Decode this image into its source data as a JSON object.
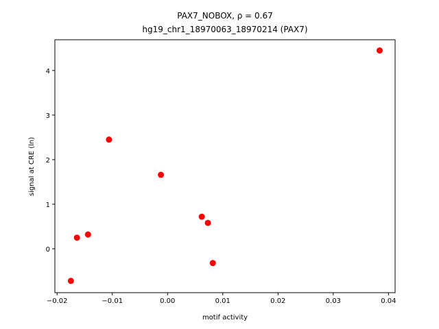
{
  "chart_data": {
    "type": "scatter",
    "title": "PAX7_NOBOX, ρ = 0.67",
    "subtitle": "hg19_chr1_18970063_18970214 (PAX7)",
    "x_label": "motif activity",
    "y_label": "signal at CRE (ln)",
    "series": [
      {
        "color": "#ff0000",
        "x": [
          0.0384,
          -0.0106,
          -0.0012,
          0.0062,
          0.0073,
          -0.0144,
          -0.0164,
          0.0082,
          -0.0175
        ],
        "values": [
          4.45,
          2.45,
          1.66,
          0.72,
          0.58,
          0.32,
          0.25,
          -0.32,
          -0.72
        ]
      }
    ],
    "xlim": [
      -0.0204,
      0.0412
    ],
    "ylim": [
      -0.985,
      4.69
    ],
    "xticks": [
      {
        "value": -0.02,
        "label": "−0.02"
      },
      {
        "value": -0.01,
        "label": "−0.01"
      },
      {
        "value": 0,
        "label": "0.00"
      },
      {
        "value": 0.01,
        "label": "0.01"
      },
      {
        "value": 0.02,
        "label": "0.02"
      },
      {
        "value": 0.03,
        "label": "0.03"
      },
      {
        "value": 0.04,
        "label": "0.04"
      }
    ],
    "yticks": [
      0,
      1,
      2,
      3,
      4
    ],
    "grid": false
  }
}
